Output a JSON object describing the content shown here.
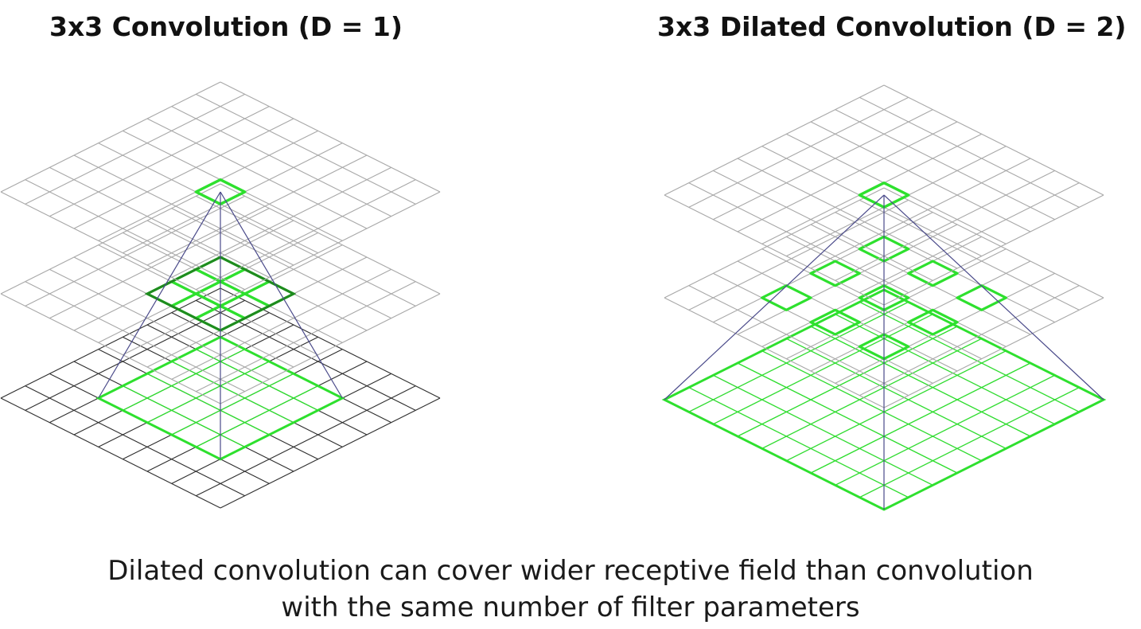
{
  "titles": {
    "left": "3x3 Convolution (D = 1)",
    "right": "3x3 Dilated Convolution (D = 2)"
  },
  "caption": {
    "line1": "Dilated convolution can cover wider receptive field than convolution",
    "line2": "with the same number of filter parameters"
  },
  "diagrams": [
    {
      "name": "standard-convolution",
      "dilation": 1,
      "grid_size": 9,
      "kernel_size": 3,
      "layers": [
        "top-output",
        "middle-hidden",
        "bottom-input"
      ],
      "top_highlight_cells": [
        [
          4,
          4
        ]
      ],
      "middle_highlight_cells": [
        [
          3,
          3
        ],
        [
          3,
          4
        ],
        [
          3,
          5
        ],
        [
          4,
          3
        ],
        [
          4,
          4
        ],
        [
          4,
          5
        ],
        [
          5,
          3
        ],
        [
          5,
          4
        ],
        [
          5,
          5
        ]
      ],
      "bottom_receptive_field": [
        2,
        6
      ]
    },
    {
      "name": "dilated-convolution",
      "dilation": 2,
      "grid_size": 9,
      "kernel_size": 3,
      "layers": [
        "top-output",
        "middle-hidden",
        "bottom-input"
      ],
      "top_highlight_cells": [
        [
          4,
          4
        ]
      ],
      "middle_highlight_cells": [
        [
          2,
          2
        ],
        [
          2,
          4
        ],
        [
          2,
          6
        ],
        [
          4,
          2
        ],
        [
          4,
          4
        ],
        [
          4,
          6
        ],
        [
          6,
          2
        ],
        [
          6,
          4
        ],
        [
          6,
          6
        ]
      ],
      "bottom_receptive_field": [
        0,
        8
      ]
    }
  ],
  "colors": {
    "grid_light": "#a8a8a8",
    "grid_dark": "#2e2e2e",
    "highlight": "#2ee02e",
    "projection": "#4a4a8a"
  }
}
